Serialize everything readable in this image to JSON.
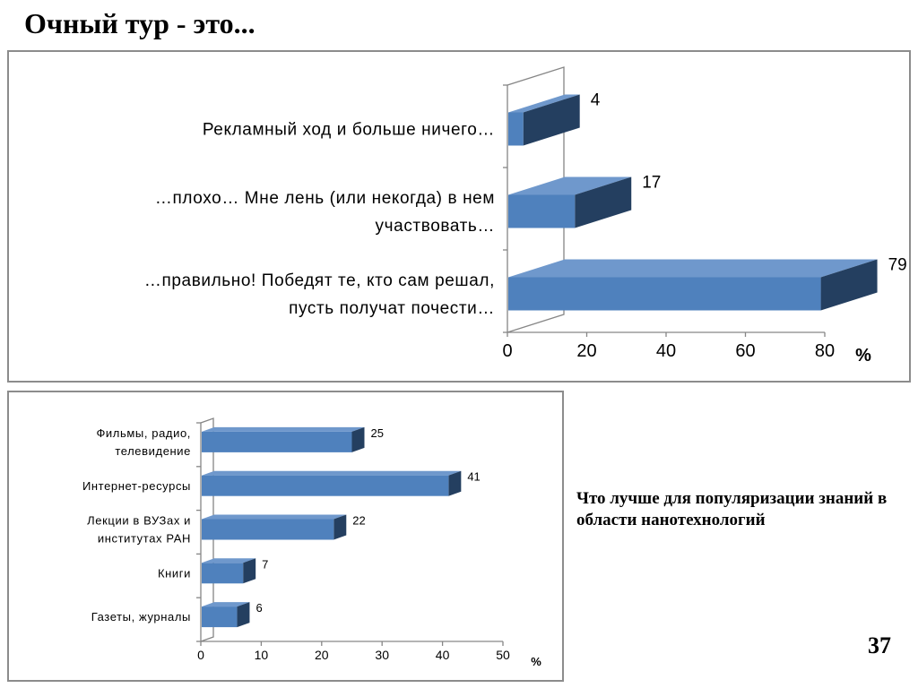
{
  "slide": {
    "title": "Очный тур - это...",
    "side_caption": "Что лучше для популяризации знаний в области нанотехнологий",
    "page_number": "37"
  },
  "colors": {
    "bar_front": "#4f81bd",
    "bar_top": "#6f98cc",
    "bar_side": "#243f60",
    "axis": "#868686",
    "frame": "#8c8c8c"
  },
  "chart_data": [
    {
      "type": "bar",
      "orientation": "horizontal",
      "style": "3d",
      "categories": [
        "Рекламный ход и больше ничего…",
        "…плохо… Мне лень (или некогда) в нем участвовать…",
        "…правильно! Победят те, кто сам решал, пусть получат почести…"
      ],
      "category_lines": [
        [
          "Рекламный ход и больше ничего…"
        ],
        [
          "…плохо… Мне лень (или некогда) в нем",
          "участвовать…"
        ],
        [
          "…правильно! Победят те, кто сам решал,",
          "пусть получат почести…"
        ]
      ],
      "values": [
        4,
        17,
        79
      ],
      "xlim": [
        0,
        80
      ],
      "ticks": [
        0,
        20,
        40,
        60,
        80
      ],
      "unit_label": "%",
      "grid": false,
      "legend": "none"
    },
    {
      "type": "bar",
      "orientation": "horizontal",
      "style": "3d",
      "categories": [
        "Фильмы, радио, телевидение",
        "Интернет-ресурсы",
        "Лекции в ВУЗах и институтах РАН",
        "Книги",
        "Газеты, журналы"
      ],
      "category_lines": [
        [
          "Фильмы, радио,",
          "телевидение"
        ],
        [
          "Интернет-ресурсы"
        ],
        [
          "Лекции в ВУЗах и",
          "институтах РАН"
        ],
        [
          "Книги"
        ],
        [
          "Газеты, журналы"
        ]
      ],
      "values": [
        25,
        41,
        22,
        7,
        6
      ],
      "xlim": [
        0,
        50
      ],
      "ticks": [
        0,
        10,
        20,
        30,
        40,
        50
      ],
      "unit_label": "%",
      "grid": false,
      "legend": "none"
    }
  ]
}
